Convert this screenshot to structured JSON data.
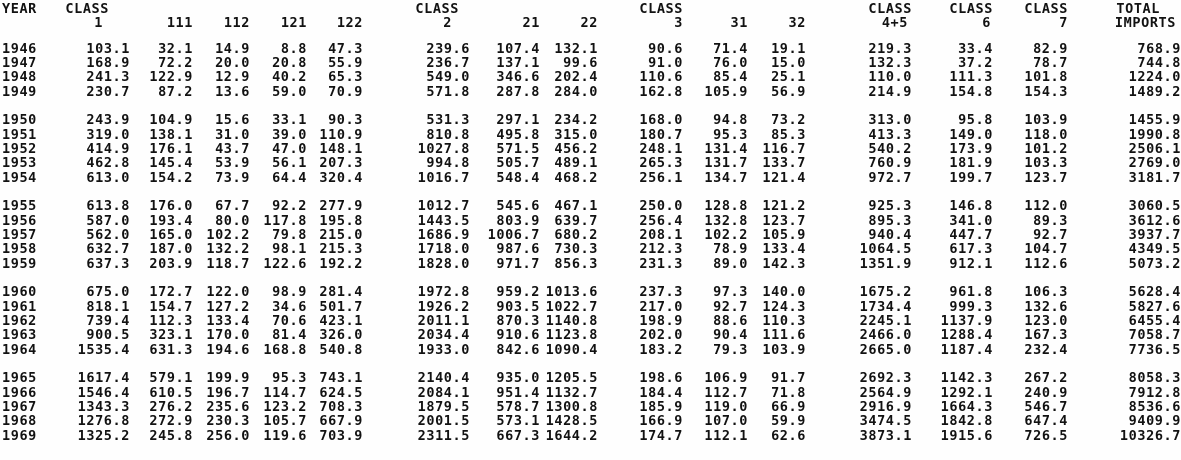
{
  "page": {
    "background": "#fefefe",
    "text_color": "#121212"
  },
  "table": {
    "header_line1": [
      "YEAR",
      "CLASS",
      "",
      "",
      "",
      "",
      "CLASS",
      "",
      "",
      "CLASS",
      "",
      "",
      "CLASS",
      "CLASS",
      "CLASS",
      "TOTAL"
    ],
    "header_line2": [
      "",
      "1",
      "111",
      "112",
      "121",
      "122",
      "2",
      "21",
      "22",
      "3",
      "31",
      "32",
      "4+5",
      "6",
      "7",
      "IMPORTS"
    ],
    "columns": [
      "YEAR",
      "CLASS 1",
      "111",
      "112",
      "121",
      "122",
      "CLASS 2",
      "21",
      "22",
      "CLASS 3",
      "31",
      "32",
      "CLASS 4+5",
      "CLASS 6",
      "CLASS 7",
      "TOTAL IMPORTS"
    ],
    "row_groups": [
      [
        [
          "1946",
          "103.1",
          "32.1",
          "14.9",
          "8.8",
          "47.3",
          "239.6",
          "107.4",
          "132.1",
          "90.6",
          "71.4",
          "19.1",
          "219.3",
          "33.4",
          "82.9",
          "768.9"
        ],
        [
          "1947",
          "168.9",
          "72.2",
          "20.0",
          "20.8",
          "55.9",
          "236.7",
          "137.1",
          "99.6",
          "91.0",
          "76.0",
          "15.0",
          "132.3",
          "37.2",
          "78.7",
          "744.8"
        ],
        [
          "1948",
          "241.3",
          "122.9",
          "12.9",
          "40.2",
          "65.3",
          "549.0",
          "346.6",
          "202.4",
          "110.6",
          "85.4",
          "25.1",
          "110.0",
          "111.3",
          "101.8",
          "1224.0"
        ],
        [
          "1949",
          "230.7",
          "87.2",
          "13.6",
          "59.0",
          "70.9",
          "571.8",
          "287.8",
          "284.0",
          "162.8",
          "105.9",
          "56.9",
          "214.9",
          "154.8",
          "154.3",
          "1489.2"
        ]
      ],
      [
        [
          "1950",
          "243.9",
          "104.9",
          "15.6",
          "33.1",
          "90.3",
          "531.3",
          "297.1",
          "234.2",
          "168.0",
          "94.8",
          "73.2",
          "313.0",
          "95.8",
          "103.9",
          "1455.9"
        ],
        [
          "1951",
          "319.0",
          "138.1",
          "31.0",
          "39.0",
          "110.9",
          "810.8",
          "495.8",
          "315.0",
          "180.7",
          "95.3",
          "85.3",
          "413.3",
          "149.0",
          "118.0",
          "1990.8"
        ],
        [
          "1952",
          "414.9",
          "176.1",
          "43.7",
          "47.0",
          "148.1",
          "1027.8",
          "571.5",
          "456.2",
          "248.1",
          "131.4",
          "116.7",
          "540.2",
          "173.9",
          "101.2",
          "2506.1"
        ],
        [
          "1953",
          "462.8",
          "145.4",
          "53.9",
          "56.1",
          "207.3",
          "994.8",
          "505.7",
          "489.1",
          "265.3",
          "131.7",
          "133.7",
          "760.9",
          "181.9",
          "103.3",
          "2769.0"
        ],
        [
          "1954",
          "613.0",
          "154.2",
          "73.9",
          "64.4",
          "320.4",
          "1016.7",
          "548.4",
          "468.2",
          "256.1",
          "134.7",
          "121.4",
          "972.7",
          "199.7",
          "123.7",
          "3181.7"
        ]
      ],
      [
        [
          "1955",
          "613.8",
          "176.0",
          "67.7",
          "92.2",
          "277.9",
          "1012.7",
          "545.6",
          "467.1",
          "250.0",
          "128.8",
          "121.2",
          "925.3",
          "146.8",
          "112.0",
          "3060.5"
        ],
        [
          "1956",
          "587.0",
          "193.4",
          "80.0",
          "117.8",
          "195.8",
          "1443.5",
          "803.9",
          "639.7",
          "256.4",
          "132.8",
          "123.7",
          "895.3",
          "341.0",
          "89.3",
          "3612.6"
        ],
        [
          "1957",
          "562.0",
          "165.0",
          "102.2",
          "79.8",
          "215.0",
          "1686.9",
          "1006.7",
          "680.2",
          "208.1",
          "102.2",
          "105.9",
          "940.4",
          "447.7",
          "92.7",
          "3937.7"
        ],
        [
          "1958",
          "632.7",
          "187.0",
          "132.2",
          "98.1",
          "215.3",
          "1718.0",
          "987.6",
          "730.3",
          "212.3",
          "78.9",
          "133.4",
          "1064.5",
          "617.3",
          "104.7",
          "4349.5"
        ],
        [
          "1959",
          "637.3",
          "203.9",
          "118.7",
          "122.6",
          "192.2",
          "1828.0",
          "971.7",
          "856.3",
          "231.3",
          "89.0",
          "142.3",
          "1351.9",
          "912.1",
          "112.6",
          "5073.2"
        ]
      ],
      [
        [
          "1960",
          "675.0",
          "172.7",
          "122.0",
          "98.9",
          "281.4",
          "1972.8",
          "959.2",
          "1013.6",
          "237.3",
          "97.3",
          "140.0",
          "1675.2",
          "961.8",
          "106.3",
          "5628.4"
        ],
        [
          "1961",
          "818.1",
          "154.7",
          "127.2",
          "34.6",
          "501.7",
          "1926.2",
          "903.5",
          "1022.7",
          "217.0",
          "92.7",
          "124.3",
          "1734.4",
          "999.3",
          "132.6",
          "5827.6"
        ],
        [
          "1962",
          "739.4",
          "112.3",
          "133.4",
          "70.6",
          "423.1",
          "2011.1",
          "870.3",
          "1140.8",
          "198.9",
          "88.6",
          "110.3",
          "2245.1",
          "1137.9",
          "123.0",
          "6455.4"
        ],
        [
          "1963",
          "900.5",
          "323.1",
          "170.0",
          "81.4",
          "326.0",
          "2034.4",
          "910.6",
          "1123.8",
          "202.0",
          "90.4",
          "111.6",
          "2466.0",
          "1288.4",
          "167.3",
          "7058.7"
        ],
        [
          "1964",
          "1535.4",
          "631.3",
          "194.6",
          "168.8",
          "540.8",
          "1933.0",
          "842.6",
          "1090.4",
          "183.2",
          "79.3",
          "103.9",
          "2665.0",
          "1187.4",
          "232.4",
          "7736.5"
        ]
      ],
      [
        [
          "1965",
          "1617.4",
          "579.1",
          "199.9",
          "95.3",
          "743.1",
          "2140.4",
          "935.0",
          "1205.5",
          "198.6",
          "106.9",
          "91.7",
          "2692.3",
          "1142.3",
          "267.2",
          "8058.3"
        ],
        [
          "1966",
          "1546.4",
          "610.5",
          "196.7",
          "114.7",
          "624.5",
          "2084.1",
          "951.4",
          "1132.7",
          "184.4",
          "112.7",
          "71.8",
          "2564.9",
          "1292.1",
          "240.9",
          "7912.8"
        ],
        [
          "1967",
          "1343.3",
          "276.2",
          "235.6",
          "123.2",
          "708.3",
          "1879.5",
          "578.7",
          "1300.8",
          "185.9",
          "119.0",
          "66.9",
          "2916.9",
          "1664.3",
          "546.7",
          "8536.6"
        ],
        [
          "1968",
          "1276.8",
          "272.9",
          "230.3",
          "105.7",
          "667.9",
          "2001.5",
          "573.1",
          "1428.5",
          "166.9",
          "107.0",
          "59.9",
          "3474.5",
          "1842.8",
          "647.4",
          "9409.9"
        ],
        [
          "1969",
          "1325.2",
          "245.8",
          "256.0",
          "119.6",
          "703.9",
          "2311.5",
          "667.3",
          "1644.2",
          "174.7",
          "112.1",
          "62.6",
          "3873.1",
          "1915.6",
          "726.5",
          "10326.7"
        ]
      ]
    ]
  }
}
